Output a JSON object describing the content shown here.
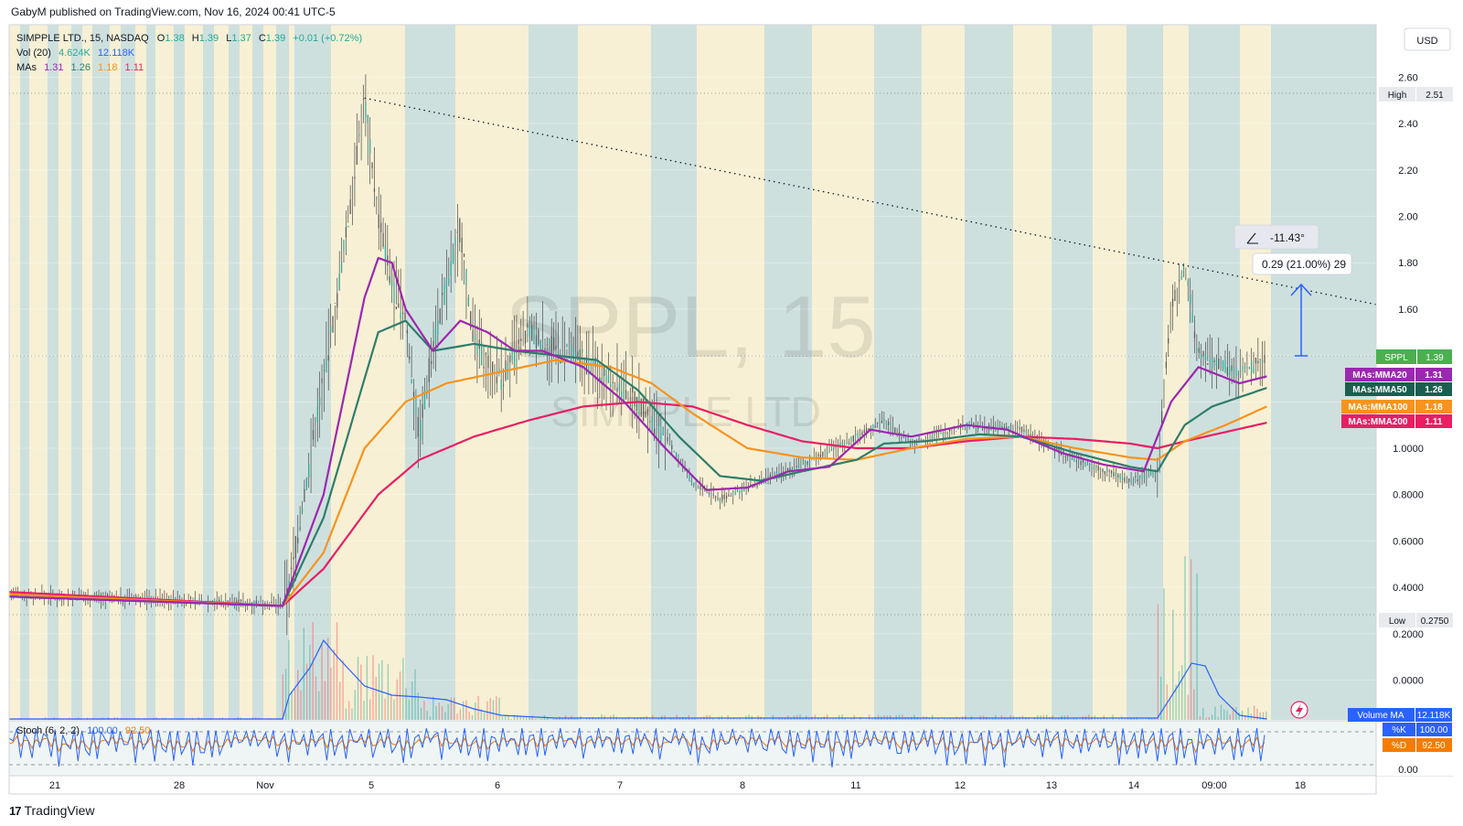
{
  "header": {
    "published": "GabyM published on TradingView.com, Nov 16, 2024 00:41 UTC-5"
  },
  "footer": {
    "brand": "TradingView",
    "logo_glyph": "17"
  },
  "legend": {
    "symbol_line": "SIMPPLE LTD., 15, NASDAQ",
    "ohlc": {
      "o_label": "O",
      "o": "1.38",
      "h_label": "H",
      "h": "1.39",
      "l_label": "L",
      "l": "1.37",
      "c_label": "C",
      "c": "1.39",
      "change": "+0.01 (+0.72%)"
    },
    "vol_label": "Vol (20)",
    "vol_value": "4.624K",
    "vol_ma": "12.118K",
    "mas_label": "MAs",
    "mas": [
      "1.31",
      "1.26",
      "1.18",
      "1.11"
    ],
    "stoch_label": "Stoch (6, 2, 2)",
    "stoch_k": "100.00",
    "stoch_d": "92.50"
  },
  "watermark": {
    "ticker": "SPPL, 15",
    "name": "SIMPPLE LTD"
  },
  "currency": "USD",
  "price_axis_ticks": [
    "2.60",
    "2.40",
    "2.20",
    "2.00",
    "1.80",
    "1.60",
    "1.0000",
    "0.8000",
    "0.6000",
    "0.4000",
    "0.2000",
    "0.0000"
  ],
  "stoch_axis_tick": "0.00",
  "time_axis_labels": [
    "21",
    "28",
    "Nov",
    "5",
    "6",
    "7",
    "8",
    "11",
    "12",
    "13",
    "14",
    "09:00",
    "18"
  ],
  "badges": {
    "high_label": "High",
    "high_value": "2.51",
    "low_label": "Low",
    "low_value": "0.2750",
    "sppl_label": "SPPL",
    "sppl_value": "1.39",
    "mma20_label": "MAs:MMA20",
    "mma20_value": "1.31",
    "mma50_label": "MAs:MMA50",
    "mma50_value": "1.26",
    "mma100_label": "MAs:MMA100",
    "mma100_value": "1.18",
    "mma200_label": "MAs:MMA200",
    "mma200_value": "1.11",
    "volma_label": "Volume MA",
    "volma_value": "12.118K",
    "k_label": "%K",
    "k_value": "100.00",
    "d_label": "%D",
    "d_value": "92.50"
  },
  "annotations": {
    "angle": "-11.43°",
    "measure": "0.29 (21.00%) 29"
  },
  "colors": {
    "background_light": "#f7f0d4",
    "background_dark": "#cee0de",
    "mma20": "#9c27b0",
    "mma50": "#2e7d6b",
    "mma100": "#f7931e",
    "mma200": "#e91e63",
    "volume_ma": "#2962ff",
    "stoch_k": "#2962ff",
    "stoch_d": "#f57c00",
    "sppl": "#4caf50"
  },
  "chart_data": {
    "type": "line",
    "title": "SIMPPLE LTD., 15, NASDAQ",
    "ylim": [
      -0.1,
      2.7
    ],
    "x_labels": [
      "21",
      "28",
      "Nov",
      "5",
      "6",
      "7",
      "8",
      "11",
      "12",
      "13",
      "14",
      "09:00",
      "18"
    ],
    "price_path": [
      [
        0.0,
        0.37
      ],
      [
        0.19,
        0.33
      ],
      [
        0.2,
        0.32
      ],
      [
        0.205,
        0.4
      ],
      [
        0.22,
        0.95
      ],
      [
        0.24,
        1.65
      ],
      [
        0.26,
        2.51
      ],
      [
        0.27,
        2.0
      ],
      [
        0.28,
        1.7
      ],
      [
        0.29,
        1.55
      ],
      [
        0.3,
        1.05
      ],
      [
        0.31,
        1.45
      ],
      [
        0.33,
        1.95
      ],
      [
        0.34,
        1.45
      ],
      [
        0.36,
        1.3
      ],
      [
        0.38,
        1.5
      ],
      [
        0.4,
        1.42
      ],
      [
        0.42,
        1.38
      ],
      [
        0.44,
        1.3
      ],
      [
        0.46,
        1.2
      ],
      [
        0.48,
        1.05
      ],
      [
        0.5,
        0.85
      ],
      [
        0.52,
        0.78
      ],
      [
        0.54,
        0.83
      ],
      [
        0.58,
        0.93
      ],
      [
        0.62,
        1.05
      ],
      [
        0.64,
        1.12
      ],
      [
        0.66,
        1.02
      ],
      [
        0.7,
        1.1
      ],
      [
        0.74,
        1.08
      ],
      [
        0.78,
        0.95
      ],
      [
        0.82,
        0.86
      ],
      [
        0.84,
        0.9
      ],
      [
        0.85,
        1.6
      ],
      [
        0.86,
        1.78
      ],
      [
        0.87,
        1.4
      ],
      [
        0.9,
        1.32
      ],
      [
        0.92,
        1.39
      ]
    ],
    "series": [
      {
        "name": "MAs:MMA20",
        "last": 1.31,
        "path": [
          [
            0.0,
            0.36
          ],
          [
            0.2,
            0.32
          ],
          [
            0.23,
            0.8
          ],
          [
            0.26,
            1.65
          ],
          [
            0.27,
            1.82
          ],
          [
            0.28,
            1.8
          ],
          [
            0.29,
            1.6
          ],
          [
            0.31,
            1.42
          ],
          [
            0.33,
            1.55
          ],
          [
            0.35,
            1.5
          ],
          [
            0.37,
            1.42
          ],
          [
            0.39,
            1.42
          ],
          [
            0.42,
            1.35
          ],
          [
            0.45,
            1.2
          ],
          [
            0.48,
            1.0
          ],
          [
            0.51,
            0.82
          ],
          [
            0.54,
            0.83
          ],
          [
            0.57,
            0.9
          ],
          [
            0.6,
            0.92
          ],
          [
            0.63,
            1.08
          ],
          [
            0.66,
            1.05
          ],
          [
            0.7,
            1.1
          ],
          [
            0.73,
            1.08
          ],
          [
            0.77,
            0.98
          ],
          [
            0.8,
            0.93
          ],
          [
            0.83,
            0.9
          ],
          [
            0.85,
            1.2
          ],
          [
            0.87,
            1.35
          ],
          [
            0.9,
            1.28
          ],
          [
            0.92,
            1.31
          ]
        ]
      },
      {
        "name": "MAs:MMA50",
        "last": 1.26,
        "path": [
          [
            0.0,
            0.36
          ],
          [
            0.2,
            0.32
          ],
          [
            0.23,
            0.7
          ],
          [
            0.27,
            1.5
          ],
          [
            0.29,
            1.55
          ],
          [
            0.31,
            1.42
          ],
          [
            0.34,
            1.45
          ],
          [
            0.37,
            1.42
          ],
          [
            0.4,
            1.4
          ],
          [
            0.43,
            1.38
          ],
          [
            0.46,
            1.25
          ],
          [
            0.49,
            1.05
          ],
          [
            0.52,
            0.88
          ],
          [
            0.55,
            0.86
          ],
          [
            0.58,
            0.9
          ],
          [
            0.62,
            0.95
          ],
          [
            0.64,
            1.02
          ],
          [
            0.67,
            1.03
          ],
          [
            0.71,
            1.06
          ],
          [
            0.74,
            1.05
          ],
          [
            0.78,
            0.98
          ],
          [
            0.82,
            0.92
          ],
          [
            0.84,
            0.9
          ],
          [
            0.86,
            1.1
          ],
          [
            0.88,
            1.18
          ],
          [
            0.92,
            1.26
          ]
        ]
      },
      {
        "name": "MAs:MMA100",
        "last": 1.18,
        "path": [
          [
            0.0,
            0.37
          ],
          [
            0.2,
            0.32
          ],
          [
            0.23,
            0.55
          ],
          [
            0.26,
            1.0
          ],
          [
            0.29,
            1.2
          ],
          [
            0.32,
            1.28
          ],
          [
            0.36,
            1.33
          ],
          [
            0.4,
            1.38
          ],
          [
            0.44,
            1.35
          ],
          [
            0.47,
            1.28
          ],
          [
            0.5,
            1.15
          ],
          [
            0.54,
            1.0
          ],
          [
            0.58,
            0.96
          ],
          [
            0.62,
            0.95
          ],
          [
            0.66,
            1.0
          ],
          [
            0.7,
            1.04
          ],
          [
            0.74,
            1.05
          ],
          [
            0.78,
            1.0
          ],
          [
            0.82,
            0.96
          ],
          [
            0.84,
            0.95
          ],
          [
            0.86,
            1.03
          ],
          [
            0.89,
            1.1
          ],
          [
            0.92,
            1.18
          ]
        ]
      },
      {
        "name": "MAs:MMA200",
        "last": 1.11,
        "path": [
          [
            0.0,
            0.38
          ],
          [
            0.2,
            0.32
          ],
          [
            0.23,
            0.48
          ],
          [
            0.27,
            0.8
          ],
          [
            0.3,
            0.95
          ],
          [
            0.34,
            1.05
          ],
          [
            0.38,
            1.12
          ],
          [
            0.42,
            1.18
          ],
          [
            0.46,
            1.2
          ],
          [
            0.5,
            1.18
          ],
          [
            0.54,
            1.1
          ],
          [
            0.58,
            1.03
          ],
          [
            0.62,
            1.0
          ],
          [
            0.66,
            1.0
          ],
          [
            0.7,
            1.03
          ],
          [
            0.74,
            1.05
          ],
          [
            0.78,
            1.04
          ],
          [
            0.82,
            1.02
          ],
          [
            0.84,
            1.0
          ],
          [
            0.86,
            1.03
          ],
          [
            0.89,
            1.07
          ],
          [
            0.92,
            1.11
          ]
        ]
      }
    ],
    "high": 2.51,
    "low": 0.275,
    "last": 1.39,
    "trendline": {
      "from": [
        0.26,
        2.51
      ],
      "to": [
        1.0,
        1.62
      ]
    },
    "volume_ma_last": "12.118K",
    "stochastic": {
      "k": 100.0,
      "d": 92.5
    }
  }
}
